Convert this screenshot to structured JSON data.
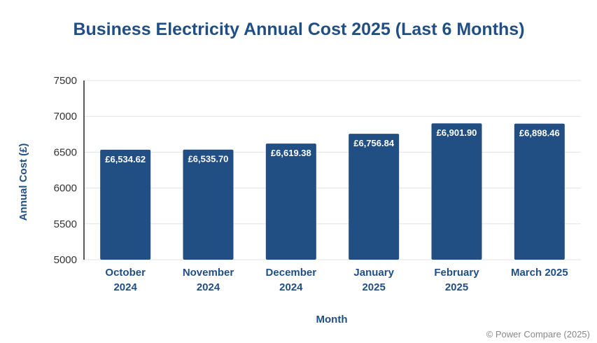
{
  "chart_data": {
    "type": "bar",
    "title": "Business Electricity Annual Cost 2025 (Last 6 Months)",
    "xlabel": "Month",
    "ylabel": "Annual Cost (£)",
    "categories": [
      [
        "October",
        "2024"
      ],
      [
        "November",
        "2024"
      ],
      [
        "December",
        "2024"
      ],
      [
        "January",
        "2025"
      ],
      [
        "February",
        "2025"
      ],
      [
        "March 2025"
      ]
    ],
    "values": [
      6534.62,
      6535.7,
      6619.38,
      6756.84,
      6901.9,
      6898.46
    ],
    "value_labels": [
      "£6,534.62",
      "£6,535.70",
      "£6,619.38",
      "£6,756.84",
      "£6,901.90",
      "£6,898.46"
    ],
    "ylim": [
      5000,
      7500
    ],
    "yticks": [
      5000,
      5500,
      6000,
      6500,
      7000,
      7500
    ],
    "grid": true,
    "bar_color": "#214f84",
    "source": "© Power Compare (2025)"
  }
}
